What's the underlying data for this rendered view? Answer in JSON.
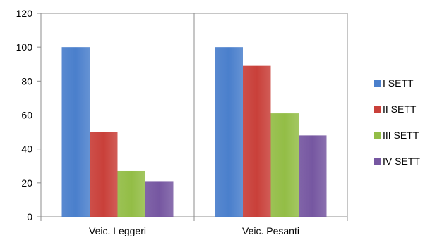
{
  "chart_data": {
    "type": "bar",
    "categories": [
      "Veic. Leggeri",
      "Veic. Pesanti"
    ],
    "series": [
      {
        "name": "I SETT",
        "values": [
          100,
          100
        ],
        "color": "#4A7FCC"
      },
      {
        "name": "II SETT",
        "values": [
          50,
          89
        ],
        "color": "#C9403A"
      },
      {
        "name": "III SETT",
        "values": [
          27,
          61
        ],
        "color": "#93BD46"
      },
      {
        "name": "IV SETT",
        "values": [
          21,
          48
        ],
        "color": "#7657A1"
      }
    ],
    "y_ticks": [
      "0",
      "20",
      "40",
      "60",
      "80",
      "100",
      "120"
    ],
    "ylim": [
      0,
      120
    ],
    "grid": false,
    "legend_position": "right",
    "title": "",
    "xlabel": "",
    "ylabel": ""
  }
}
